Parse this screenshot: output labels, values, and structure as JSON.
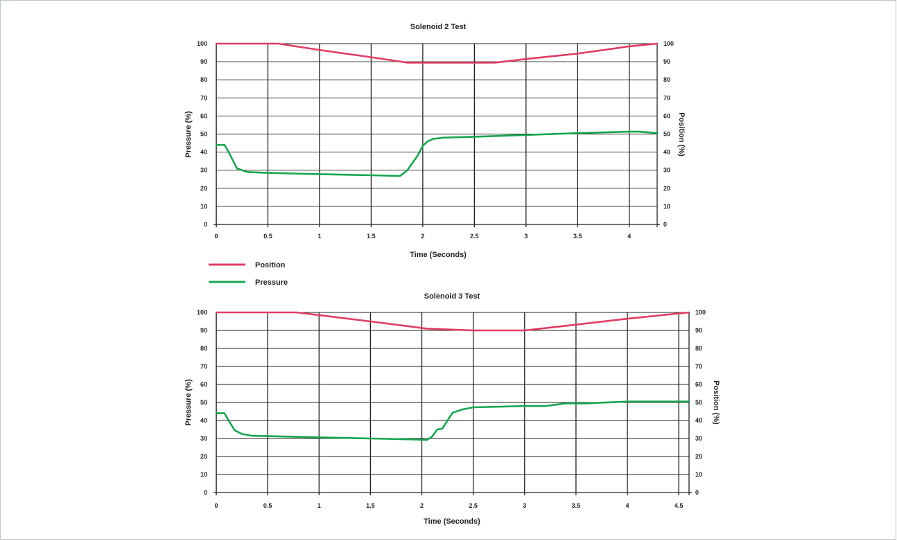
{
  "colors": {
    "position": "#e03c64",
    "pressure": "#16a651",
    "grid": "#231f20"
  },
  "legend": {
    "position_label": "Position",
    "pressure_label": "Pressure"
  },
  "chart_data": [
    {
      "type": "line",
      "title": "Solenoid 2 Test",
      "xlabel": "Time (Seconds)",
      "ylabel": "Pressure (%)",
      "y2label": "Position (%)",
      "xlim": [
        0,
        4.27
      ],
      "ylim": [
        0,
        100
      ],
      "xticks": [
        0,
        0.5,
        1,
        1.5,
        2,
        2.5,
        3,
        3.5,
        4
      ],
      "xtick_labels": [
        "0",
        "0.5",
        "1",
        "1.5",
        "2",
        "2.5",
        "3",
        "3.5",
        "4"
      ],
      "yticks": [
        0,
        10,
        20,
        30,
        40,
        50,
        60,
        70,
        80,
        90,
        100
      ],
      "ytick_labels": [
        "0",
        "10",
        "20",
        "30",
        "40",
        "50",
        "60",
        "70",
        "80",
        "90",
        "100"
      ],
      "grid": true,
      "series": [
        {
          "name": "Position",
          "color_key": "position",
          "x": [
            0,
            0.6,
            1.0,
            1.5,
            1.85,
            2.0,
            2.5,
            2.7,
            3.0,
            3.5,
            4.0,
            4.27
          ],
          "y": [
            100,
            100,
            96.5,
            92.5,
            89.5,
            89.5,
            89.5,
            89.5,
            91.5,
            94.5,
            98.5,
            100
          ]
        },
        {
          "name": "Pressure",
          "color_key": "pressure",
          "x": [
            0,
            0.08,
            0.12,
            0.2,
            0.3,
            0.5,
            1.0,
            1.5,
            1.78,
            1.85,
            1.95,
            2.0,
            2.05,
            2.1,
            2.2,
            2.5,
            3.0,
            3.5,
            4.0,
            4.1,
            4.27
          ],
          "y": [
            44,
            44,
            40,
            31,
            29,
            28.5,
            27.8,
            27.2,
            26.8,
            30,
            38,
            43.5,
            46,
            47.3,
            48,
            48.5,
            49.5,
            50.5,
            51.3,
            51.3,
            50.5
          ]
        }
      ]
    },
    {
      "type": "line",
      "title": "Solenoid 3 Test",
      "xlabel": "Time (Seconds)",
      "ylabel": "Pressure (%)",
      "y2label": "Position (%)",
      "xlim": [
        0,
        4.6
      ],
      "ylim": [
        0,
        100
      ],
      "xticks": [
        0,
        0.5,
        1,
        1.5,
        2,
        2.5,
        3,
        3.5,
        4,
        4.5
      ],
      "xtick_labels": [
        "0",
        "0.5",
        "1",
        "1.5",
        "2",
        "2.5",
        "3",
        "3.5",
        "4",
        "4.5"
      ],
      "yticks": [
        0,
        10,
        20,
        30,
        40,
        50,
        60,
        70,
        80,
        90,
        100
      ],
      "ytick_labels": [
        "0",
        "10",
        "20",
        "30",
        "40",
        "50",
        "60",
        "70",
        "80",
        "90",
        "100"
      ],
      "grid": true,
      "series": [
        {
          "name": "Position",
          "color_key": "position",
          "x": [
            0,
            0.78,
            1.0,
            1.5,
            2.05,
            2.5,
            3.0,
            3.5,
            4.0,
            4.6
          ],
          "y": [
            100,
            100,
            98.5,
            95,
            91,
            90,
            90,
            93.2,
            96.5,
            100
          ]
        },
        {
          "name": "Pressure",
          "color_key": "pressure",
          "x": [
            0,
            0.08,
            0.12,
            0.18,
            0.25,
            0.35,
            0.5,
            1.0,
            1.5,
            1.9,
            2.05,
            2.1,
            2.15,
            2.2,
            2.25,
            2.3,
            2.4,
            2.5,
            3.0,
            3.2,
            3.4,
            3.6,
            4.0,
            4.6
          ],
          "y": [
            44,
            44,
            40,
            34.5,
            32.5,
            31.5,
            31.3,
            30.6,
            30,
            29.5,
            29.2,
            31,
            35,
            35.5,
            40,
            44.3,
            46.2,
            47.3,
            48,
            48,
            49.5,
            49.5,
            50.5,
            50.5
          ]
        }
      ]
    }
  ]
}
